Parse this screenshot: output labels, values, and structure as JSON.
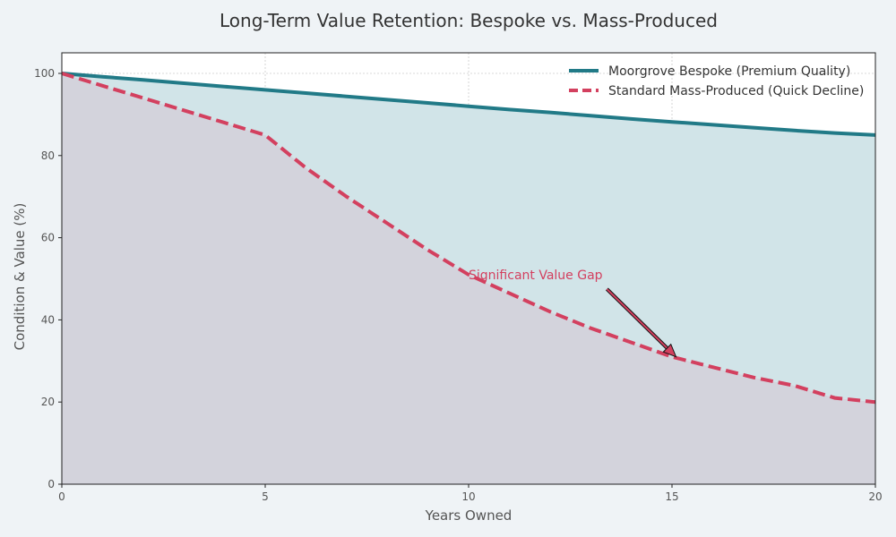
{
  "chart_data": {
    "type": "line",
    "title": "Long-Term Value Retention: Bespoke vs. Mass-Produced",
    "xlabel": "Years Owned",
    "ylabel": "Condition & Value (%)",
    "xlim": [
      0,
      20
    ],
    "ylim": [
      0,
      105
    ],
    "xticks": [
      0,
      5,
      10,
      15,
      20
    ],
    "yticks": [
      0,
      20,
      40,
      60,
      80,
      100
    ],
    "grid": true,
    "legend_position": "top-right",
    "x": [
      0,
      1,
      2,
      3,
      4,
      5,
      6,
      7,
      8,
      9,
      10,
      11,
      12,
      13,
      14,
      15,
      16,
      17,
      18,
      19,
      20
    ],
    "series": [
      {
        "name": "Moorgrove Bespoke (Premium Quality)",
        "color": "#217a87",
        "style": "solid",
        "fill": "#d1e4e8",
        "values": [
          100,
          99.2,
          98.4,
          97.6,
          96.8,
          96.0,
          95.2,
          94.4,
          93.6,
          92.8,
          92.0,
          91.2,
          90.5,
          89.7,
          88.9,
          88.2,
          87.5,
          86.8,
          86.1,
          85.5,
          85.0
        ]
      },
      {
        "name": "Standard Mass-Produced (Quick Decline)",
        "color": "#d3405f",
        "style": "dashed",
        "fill": "#d3d3dc",
        "values": [
          100,
          97,
          94,
          91,
          88,
          85,
          77,
          70,
          63.5,
          57,
          51,
          46.5,
          42,
          38,
          34.5,
          31,
          28.5,
          26,
          24,
          21,
          20
        ]
      }
    ],
    "annotations": [
      {
        "text": "Significant Value Gap",
        "color": "#d3405f",
        "text_at": [
          10,
          51
        ],
        "arrow_from": [
          13.4,
          47.5
        ],
        "arrow_to": [
          15.1,
          31
        ]
      }
    ]
  }
}
